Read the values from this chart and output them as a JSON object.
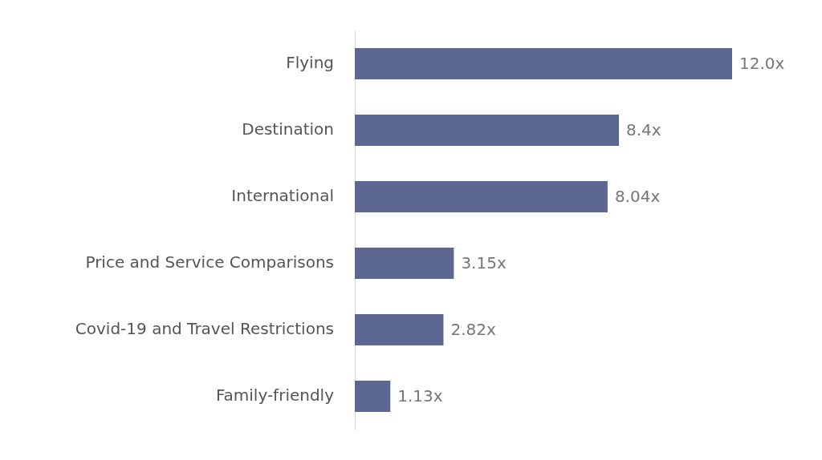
{
  "chart_data": {
    "type": "bar",
    "orientation": "horizontal",
    "categories": [
      "Flying",
      "Destination",
      "International",
      "Price and Service Comparisons",
      "Covid-19 and Travel Restrictions",
      "Family-friendly"
    ],
    "values": [
      12.0,
      8.4,
      8.04,
      3.15,
      2.82,
      1.13
    ],
    "value_labels": [
      "12.0x",
      "8.4x",
      "8.04x",
      "3.15x",
      "2.82x",
      "1.13x"
    ],
    "color": "#5c6891",
    "tick_labels": "y"
  }
}
